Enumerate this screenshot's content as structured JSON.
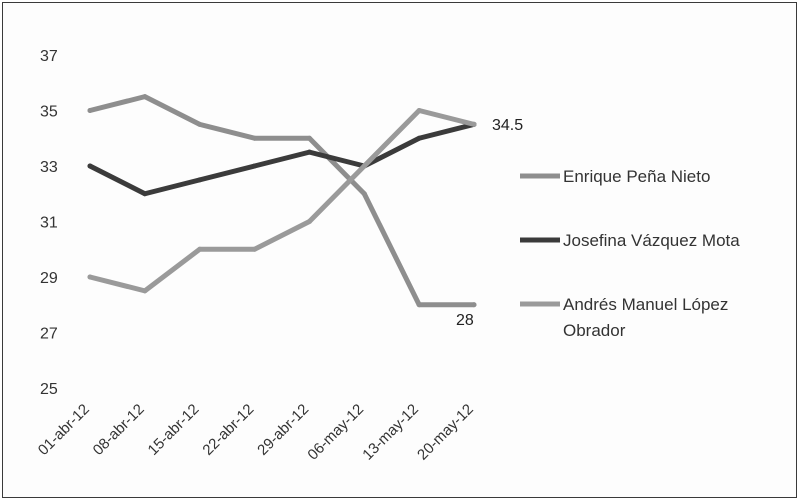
{
  "chart_data": {
    "type": "line",
    "title": "",
    "xlabel": "",
    "ylabel": "",
    "categories": [
      "01-abr-12",
      "08-abr-12",
      "15-abr-12",
      "22-abr-12",
      "29-abr-12",
      "06-may-12",
      "13-may-12",
      "20-may-12"
    ],
    "ylim": [
      25,
      37
    ],
    "yticks": [
      "25",
      "27",
      "29",
      "31",
      "33",
      "35",
      "37"
    ],
    "grid": false,
    "legend_position": "right",
    "series": [
      {
        "name": "Enrique Peña Nieto",
        "color": "#8e8e8e",
        "values": [
          35,
          35.5,
          34.5,
          34,
          34,
          32,
          28,
          28
        ]
      },
      {
        "name": "Josefina Vázquez Mota",
        "color": "#3b3b3b",
        "values": [
          33,
          32,
          32.5,
          33,
          33.5,
          33,
          34,
          34.5
        ]
      },
      {
        "name_lines": [
          "Andrés Manuel López",
          "Obrador"
        ],
        "name": "Andrés Manuel López Obrador",
        "color": "#9a9a9a",
        "values": [
          29,
          28.5,
          30,
          30,
          31,
          33,
          35,
          34.5
        ]
      }
    ],
    "data_labels": [
      {
        "text": "34.5"
      },
      {
        "text": "28"
      }
    ]
  }
}
